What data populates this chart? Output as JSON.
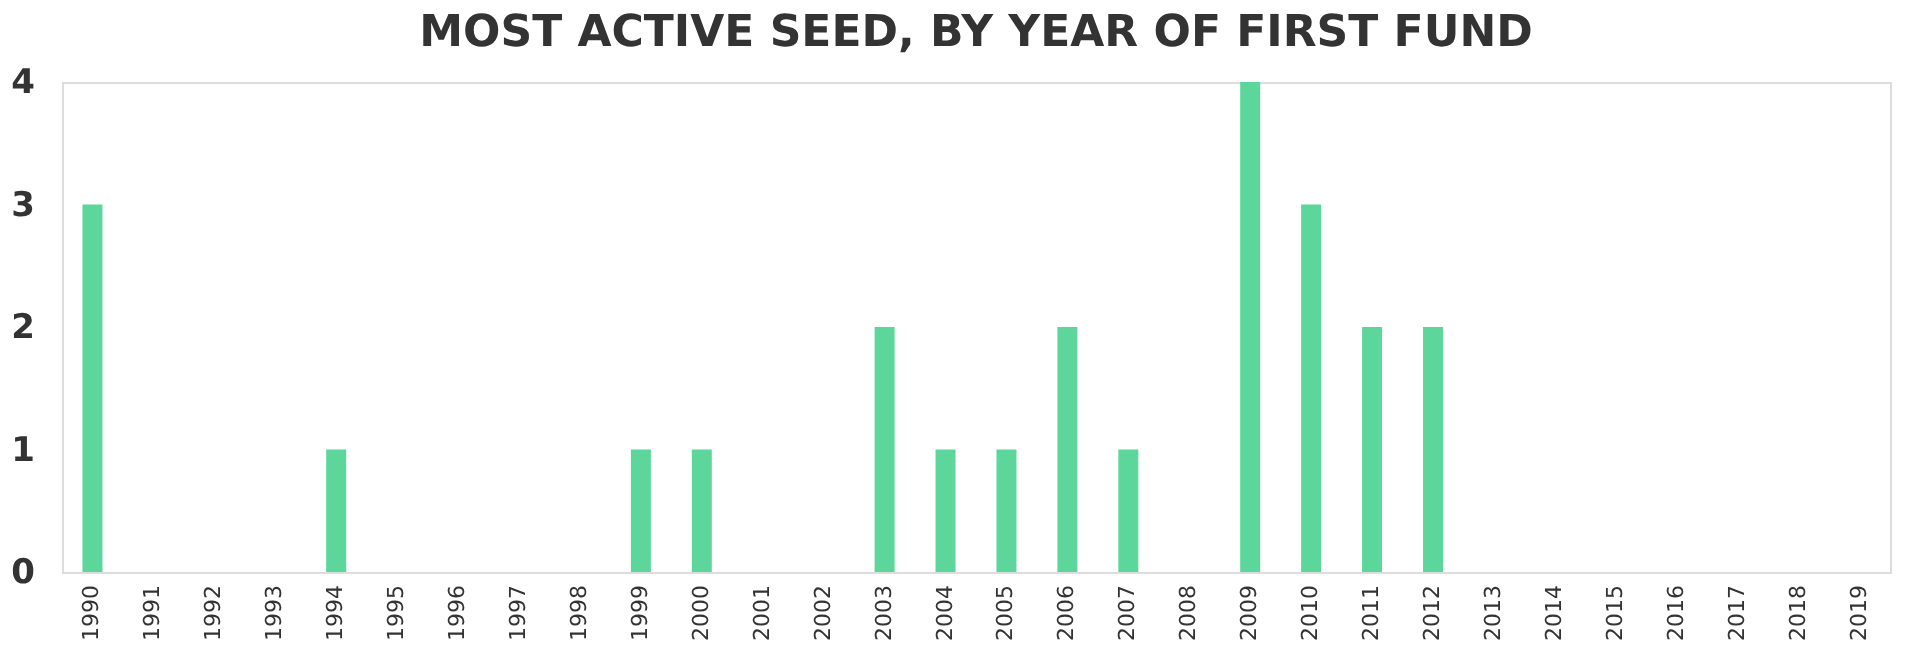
{
  "chart_data": {
    "type": "bar",
    "title": "MOST ACTIVE SEED, BY YEAR OF FIRST FUND",
    "categories": [
      "1990",
      "1991",
      "1992",
      "1993",
      "1994",
      "1995",
      "1996",
      "1997",
      "1998",
      "1999",
      "2000",
      "2001",
      "2002",
      "2003",
      "2004",
      "2005",
      "2006",
      "2007",
      "2008",
      "2009",
      "2010",
      "2011",
      "2012",
      "2013",
      "2014",
      "2015",
      "2016",
      "2017",
      "2018",
      "2019"
    ],
    "values": [
      3,
      0,
      0,
      0,
      1,
      0,
      0,
      0,
      0,
      1,
      1,
      0,
      0,
      2,
      1,
      1,
      2,
      1,
      0,
      4,
      3,
      2,
      2,
      0,
      0,
      0,
      0,
      0,
      0,
      0
    ],
    "color": "#5cd69b",
    "ylim": [
      0,
      4
    ],
    "yticks": [
      0,
      1,
      2,
      3,
      4
    ],
    "grid": false
  }
}
